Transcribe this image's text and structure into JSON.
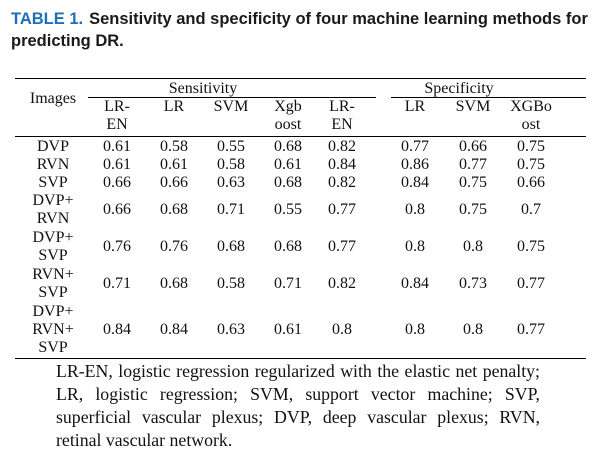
{
  "caption": {
    "label": "TABLE 1.",
    "text": "Sensitivity and specificity of four machine learning methods for predicting DR."
  },
  "table": {
    "row_header": "Images",
    "groups": [
      "Sensitivity",
      "Specificity"
    ],
    "columns": [
      [
        "LR-",
        "EN"
      ],
      [
        "LR"
      ],
      [
        "SVM"
      ],
      [
        "Xgb",
        "oost"
      ],
      [
        "LR-",
        "EN"
      ],
      [
        "LR"
      ],
      [
        "SVM"
      ],
      [
        "XGBo",
        "ost"
      ]
    ],
    "rows": [
      {
        "label": [
          "DVP"
        ],
        "values": [
          "0.61",
          "0.58",
          "0.55",
          "0.68",
          "0.82",
          "0.77",
          "0.66",
          "0.75"
        ]
      },
      {
        "label": [
          "RVN"
        ],
        "values": [
          "0.61",
          "0.61",
          "0.58",
          "0.61",
          "0.84",
          "0.86",
          "0.77",
          "0.75"
        ]
      },
      {
        "label": [
          "SVP"
        ],
        "values": [
          "0.66",
          "0.66",
          "0.63",
          "0.68",
          "0.82",
          "0.84",
          "0.75",
          "0.66"
        ]
      },
      {
        "label": [
          "DVP+",
          "RVN"
        ],
        "values": [
          "0.66",
          "0.68",
          "0.71",
          "0.55",
          "0.77",
          "0.8",
          "0.75",
          "0.7"
        ]
      },
      {
        "label": [
          "DVP+",
          "SVP"
        ],
        "values": [
          "0.76",
          "0.76",
          "0.68",
          "0.68",
          "0.77",
          "0.8",
          "0.8",
          "0.75"
        ]
      },
      {
        "label": [
          "RVN+",
          "SVP"
        ],
        "values": [
          "0.71",
          "0.68",
          "0.58",
          "0.71",
          "0.82",
          "0.84",
          "0.73",
          "0.77"
        ]
      },
      {
        "label": [
          "DVP+",
          "RVN+",
          "SVP"
        ],
        "values": [
          "0.84",
          "0.84",
          "0.63",
          "0.61",
          "0.8",
          "0.8",
          "0.8",
          "0.77"
        ]
      }
    ]
  },
  "footnote": "LR-EN, logistic regression regularized with the elastic net penalty; LR, logistic regression; SVM, support vector machine; SVP, superficial vascular plexus; DVP, deep vascular plexus; RVN, retinal vascular network."
}
